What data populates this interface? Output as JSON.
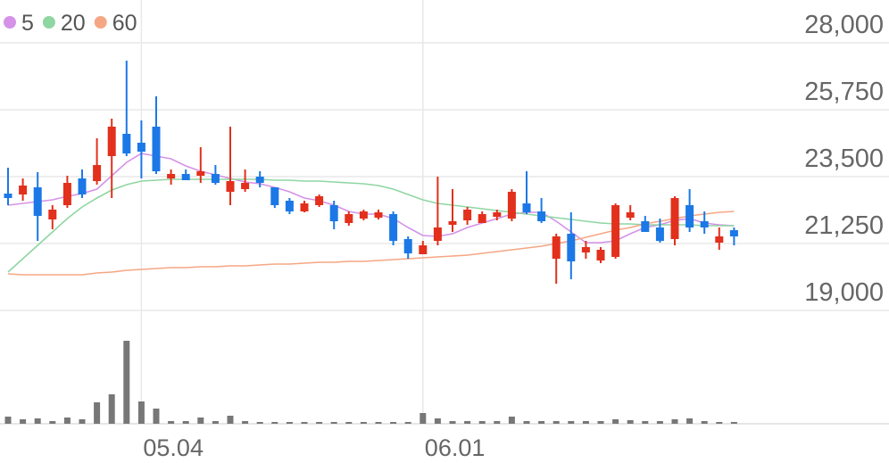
{
  "chart_data": {
    "type": "candlestick",
    "categories": [
      null,
      null,
      null,
      null,
      null,
      null,
      null,
      null,
      null,
      "05.04",
      null,
      null,
      null,
      null,
      null,
      null,
      null,
      null,
      null,
      null,
      null,
      null,
      null,
      null,
      null,
      null,
      null,
      null,
      "06.01",
      null,
      null,
      null,
      null,
      null,
      null,
      null,
      null,
      null,
      null,
      null,
      null,
      null,
      null,
      null,
      null,
      null,
      null,
      null,
      null,
      null
    ],
    "open": [
      22930,
      22900,
      23140,
      22060,
      22540,
      23440,
      23350,
      24190,
      24940,
      24640,
      25180,
      23440,
      23590,
      23530,
      23590,
      22990,
      23080,
      23500,
      23140,
      22690,
      22330,
      22540,
      22540,
      21940,
      22090,
      22120,
      22240,
      21400,
      20890,
      21340,
      21880,
      22030,
      21940,
      22150,
      22090,
      22600,
      22330,
      20740,
      21580,
      20950,
      20680,
      20800,
      22120,
      22000,
      21790,
      21400,
      22540,
      22000,
      21280,
      21700
    ],
    "high": [
      23800,
      23440,
      23650,
      22540,
      23530,
      23740,
      24790,
      25450,
      27400,
      25390,
      26200,
      23740,
      23740,
      24490,
      23890,
      25180,
      23740,
      23680,
      23140,
      22780,
      22690,
      22900,
      22690,
      22330,
      22390,
      22390,
      22330,
      21490,
      21340,
      23500,
      23080,
      22480,
      22330,
      22390,
      23080,
      23680,
      22780,
      21580,
      22300,
      21340,
      21130,
      22600,
      22540,
      22180,
      22090,
      22840,
      23080,
      22330,
      21790,
      21790
    ],
    "low": [
      22540,
      22690,
      21340,
      21730,
      22450,
      22780,
      23230,
      22780,
      24190,
      23440,
      23590,
      23230,
      23380,
      23290,
      23230,
      22540,
      22990,
      23140,
      22450,
      22240,
      22300,
      22480,
      21730,
      21850,
      22030,
      22060,
      21190,
      20740,
      20890,
      21190,
      21640,
      21880,
      21940,
      22030,
      22000,
      22240,
      21940,
      19900,
      20050,
      20740,
      20590,
      20740,
      22030,
      21640,
      21280,
      21190,
      21640,
      21580,
      21040,
      21190
    ],
    "close": [
      22780,
      23200,
      22180,
      22390,
      23290,
      22900,
      23890,
      25180,
      24280,
      24340,
      23680,
      23590,
      23380,
      23680,
      23290,
      23350,
      23290,
      23290,
      22540,
      22330,
      22600,
      22840,
      22000,
      22240,
      22330,
      22300,
      21340,
      20920,
      21190,
      21790,
      22000,
      22390,
      22240,
      22300,
      22990,
      22300,
      22000,
      21490,
      20650,
      21130,
      21040,
      22540,
      22300,
      21640,
      21340,
      22780,
      21790,
      21790,
      21490,
      21490
    ],
    "up_color": "#e2301c",
    "down_color": "#1b78e6",
    "series": [
      {
        "name": "5",
        "color": "#d592e8",
        "values": [
          22540,
          22600,
          22660,
          22720,
          22840,
          22930,
          23080,
          23530,
          23980,
          24280,
          24190,
          24100,
          23860,
          23680,
          23560,
          23440,
          23320,
          23260,
          23140,
          22990,
          22780,
          22690,
          22540,
          22330,
          22240,
          22240,
          22090,
          21790,
          21520,
          21490,
          21580,
          21790,
          21940,
          22090,
          22240,
          22300,
          22300,
          22000,
          21640,
          21280,
          21280,
          21340,
          21580,
          21790,
          21880,
          22030,
          22090,
          21940,
          21880,
          21850
        ]
      },
      {
        "name": "20",
        "color": "#8fd6a2",
        "values": [
          20290,
          20740,
          21190,
          21640,
          22090,
          22480,
          22780,
          23050,
          23230,
          23350,
          23380,
          23410,
          23410,
          23410,
          23410,
          23410,
          23410,
          23410,
          23380,
          23380,
          23350,
          23350,
          23320,
          23290,
          23260,
          23200,
          23080,
          22900,
          22720,
          22600,
          22540,
          22480,
          22420,
          22360,
          22300,
          22240,
          22180,
          22120,
          22060,
          22000,
          21940,
          21910,
          21910,
          21880,
          21880,
          21880,
          21880,
          21850,
          21850,
          21850
        ]
      },
      {
        "name": "60",
        "color": "#f5a784",
        "values": [
          20230,
          20200,
          20200,
          20200,
          20200,
          20200,
          20260,
          20290,
          20350,
          20380,
          20410,
          20440,
          20440,
          20470,
          20470,
          20500,
          20500,
          20530,
          20560,
          20560,
          20590,
          20620,
          20620,
          20650,
          20650,
          20680,
          20710,
          20740,
          20770,
          20800,
          20830,
          20860,
          20920,
          20980,
          21040,
          21100,
          21160,
          21250,
          21340,
          21460,
          21580,
          21700,
          21790,
          21910,
          22000,
          22090,
          22180,
          22240,
          22300,
          22330
        ]
      }
    ],
    "volume": [
      80000,
      50000,
      60000,
      30000,
      70000,
      50000,
      240000,
      330000,
      930000,
      250000,
      170000,
      30000,
      30000,
      70000,
      30000,
      90000,
      30000,
      20000,
      20000,
      20000,
      20000,
      20000,
      20000,
      20000,
      20000,
      20000,
      20000,
      20000,
      120000,
      60000,
      30000,
      30000,
      30000,
      30000,
      80000,
      30000,
      30000,
      30000,
      30000,
      30000,
      30000,
      50000,
      40000,
      30000,
      30000,
      50000,
      60000,
      30000,
      20000,
      20000
    ],
    "volume_color": "#777777",
    "ylim": [
      19000,
      29200
    ],
    "yticks": [
      {
        "value": 19000,
        "label": "19,000"
      },
      {
        "value": 21250,
        "label": "21,250"
      },
      {
        "value": 23500,
        "label": "23,500"
      },
      {
        "value": 25750,
        "label": "25,750"
      },
      {
        "value": 28000,
        "label": "28,000"
      }
    ],
    "grid": true
  }
}
